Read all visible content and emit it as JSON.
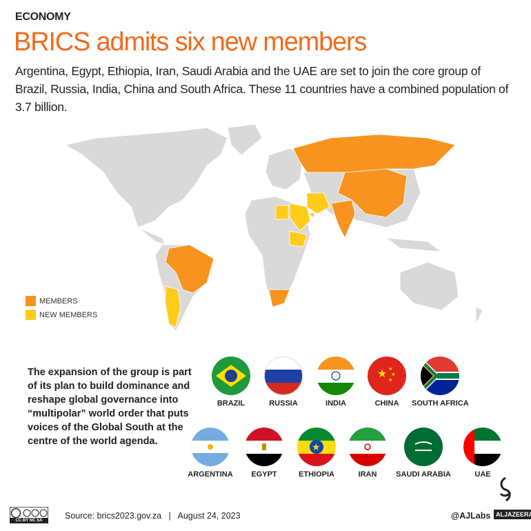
{
  "header": {
    "kicker": "ECONOMY",
    "headline": "BRICS admits six new members",
    "intro": "Argentina, Egypt, Ethiopia, Iran, Saudi Arabia and the UAE are set to join the core group of Brazil, Russia, India, China and South Africa. These 11 countries have a combined population of 3.7 billion."
  },
  "colors": {
    "accent": "#f26a1b",
    "members": "#f7931e",
    "new_members": "#ffcc1a",
    "land": "#d9d9d9"
  },
  "legend": {
    "members": "MEMBERS",
    "new_members": "NEW MEMBERS"
  },
  "note": "The expansion of the group is part of its plan to build dominance and reshape global governance into “multipolar” world order that puts voices of the Global South at the centre of the world agenda.",
  "members": [
    {
      "name": "BRAZIL",
      "flag": "brazil-flag"
    },
    {
      "name": "RUSSIA",
      "flag": "russia-flag"
    },
    {
      "name": "INDIA",
      "flag": "india-flag"
    },
    {
      "name": "CHINA",
      "flag": "china-flag"
    },
    {
      "name": "SOUTH AFRICA",
      "flag": "south-africa-flag"
    }
  ],
  "new_members": [
    {
      "name": "ARGENTINA",
      "flag": "argentina-flag"
    },
    {
      "name": "EGYPT",
      "flag": "egypt-flag"
    },
    {
      "name": "ETHIOPIA",
      "flag": "ethiopia-flag"
    },
    {
      "name": "IRAN",
      "flag": "iran-flag"
    },
    {
      "name": "SAUDI ARABIA",
      "flag": "saudi-arabia-flag"
    },
    {
      "name": "UAE",
      "flag": "uae-flag"
    }
  ],
  "footer": {
    "license": "cc by nc sa",
    "source": "Source: brics2023.gov.za   |   August 24, 2023",
    "handle": "@AJLabs",
    "brand": "ALJAZEERA"
  }
}
